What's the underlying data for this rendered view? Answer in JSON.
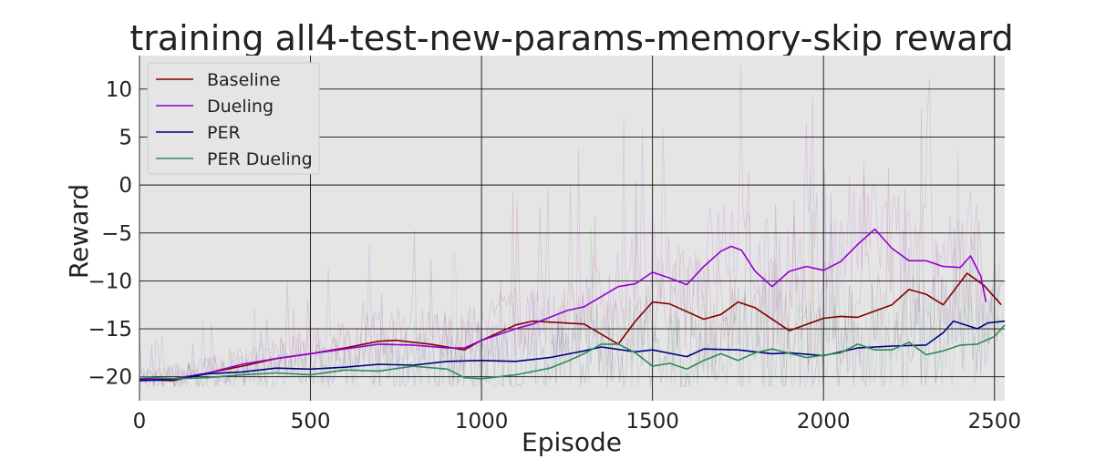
{
  "chart_data": {
    "type": "line",
    "title": "training all4-test-new-params-memory-skip reward",
    "xlabel": "Episode",
    "ylabel": "Reward",
    "xlim": [
      0,
      2530
    ],
    "ylim": [
      -22.5,
      13.5
    ],
    "xticks": [
      0,
      500,
      1000,
      1500,
      2000,
      2500
    ],
    "xtick_labels": [
      "0",
      "500",
      "1000",
      "1500",
      "2000",
      "2500"
    ],
    "yticks": [
      10,
      5,
      0,
      -5,
      -10,
      -15,
      -20
    ],
    "ytick_labels": [
      "10",
      "5",
      "0",
      "−5",
      "−10",
      "−15",
      "−20"
    ],
    "grid": true,
    "legend_position": "top-left",
    "series": [
      {
        "name": "Baseline",
        "color": "#800000",
        "smoothed": [
          [
            0,
            -20.3
          ],
          [
            100,
            -20.4
          ],
          [
            200,
            -19.6
          ],
          [
            300,
            -18.9
          ],
          [
            400,
            -18.1
          ],
          [
            500,
            -17.6
          ],
          [
            600,
            -17.0
          ],
          [
            700,
            -16.3
          ],
          [
            750,
            -16.2
          ],
          [
            850,
            -16.6
          ],
          [
            950,
            -17.2
          ],
          [
            1000,
            -16.2
          ],
          [
            1100,
            -14.6
          ],
          [
            1150,
            -14.2
          ],
          [
            1300,
            -14.5
          ],
          [
            1400,
            -16.6
          ],
          [
            1450,
            -14.2
          ],
          [
            1500,
            -12.2
          ],
          [
            1550,
            -12.4
          ],
          [
            1650,
            -14.0
          ],
          [
            1700,
            -13.5
          ],
          [
            1750,
            -12.2
          ],
          [
            1800,
            -12.8
          ],
          [
            1900,
            -15.2
          ],
          [
            2000,
            -13.9
          ],
          [
            2050,
            -13.7
          ],
          [
            2100,
            -13.8
          ],
          [
            2200,
            -12.5
          ],
          [
            2250,
            -10.9
          ],
          [
            2300,
            -11.4
          ],
          [
            2350,
            -12.5
          ],
          [
            2420,
            -9.2
          ],
          [
            2470,
            -10.5
          ],
          [
            2520,
            -12.5
          ]
        ]
      },
      {
        "name": "Dueling",
        "color": "#9400d3",
        "smoothed": [
          [
            0,
            -20.2
          ],
          [
            100,
            -20.2
          ],
          [
            200,
            -19.6
          ],
          [
            300,
            -18.7
          ],
          [
            400,
            -18.1
          ],
          [
            500,
            -17.6
          ],
          [
            600,
            -17.1
          ],
          [
            700,
            -16.6
          ],
          [
            800,
            -16.7
          ],
          [
            900,
            -17.0
          ],
          [
            950,
            -17.0
          ],
          [
            1000,
            -16.2
          ],
          [
            1100,
            -15.0
          ],
          [
            1150,
            -14.5
          ],
          [
            1250,
            -13.1
          ],
          [
            1300,
            -12.7
          ],
          [
            1400,
            -10.6
          ],
          [
            1450,
            -10.3
          ],
          [
            1500,
            -9.1
          ],
          [
            1550,
            -9.7
          ],
          [
            1600,
            -10.4
          ],
          [
            1650,
            -8.5
          ],
          [
            1700,
            -6.9
          ],
          [
            1730,
            -6.4
          ],
          [
            1760,
            -6.8
          ],
          [
            1800,
            -9.0
          ],
          [
            1850,
            -10.6
          ],
          [
            1900,
            -9.0
          ],
          [
            1950,
            -8.5
          ],
          [
            2000,
            -8.9
          ],
          [
            2050,
            -8.0
          ],
          [
            2100,
            -6.2
          ],
          [
            2150,
            -4.6
          ],
          [
            2200,
            -6.6
          ],
          [
            2250,
            -7.9
          ],
          [
            2300,
            -7.9
          ],
          [
            2350,
            -8.5
          ],
          [
            2400,
            -8.6
          ],
          [
            2430,
            -7.4
          ],
          [
            2460,
            -9.5
          ],
          [
            2475,
            -12.2
          ]
        ]
      },
      {
        "name": "PER",
        "color": "#000080",
        "smoothed": [
          [
            0,
            -20.4
          ],
          [
            100,
            -20.3
          ],
          [
            200,
            -19.7
          ],
          [
            300,
            -19.5
          ],
          [
            400,
            -19.1
          ],
          [
            500,
            -19.2
          ],
          [
            600,
            -19.0
          ],
          [
            700,
            -18.7
          ],
          [
            800,
            -18.8
          ],
          [
            900,
            -18.4
          ],
          [
            1000,
            -18.3
          ],
          [
            1100,
            -18.4
          ],
          [
            1200,
            -18.0
          ],
          [
            1300,
            -17.3
          ],
          [
            1350,
            -16.9
          ],
          [
            1450,
            -17.4
          ],
          [
            1500,
            -17.2
          ],
          [
            1600,
            -17.9
          ],
          [
            1650,
            -17.1
          ],
          [
            1750,
            -17.2
          ],
          [
            1850,
            -17.6
          ],
          [
            1900,
            -17.5
          ],
          [
            2000,
            -17.8
          ],
          [
            2100,
            -17.0
          ],
          [
            2200,
            -16.8
          ],
          [
            2300,
            -16.7
          ],
          [
            2350,
            -15.4
          ],
          [
            2380,
            -14.2
          ],
          [
            2450,
            -15.0
          ],
          [
            2480,
            -14.4
          ],
          [
            2530,
            -14.2
          ]
        ]
      },
      {
        "name": "PER Dueling",
        "color": "#2e8b57",
        "smoothed": [
          [
            0,
            -20.0
          ],
          [
            100,
            -20.2
          ],
          [
            200,
            -20.1
          ],
          [
            300,
            -19.8
          ],
          [
            400,
            -19.6
          ],
          [
            500,
            -19.8
          ],
          [
            600,
            -19.3
          ],
          [
            700,
            -19.4
          ],
          [
            800,
            -18.9
          ],
          [
            900,
            -19.2
          ],
          [
            950,
            -20.1
          ],
          [
            1000,
            -20.2
          ],
          [
            1100,
            -19.8
          ],
          [
            1200,
            -19.1
          ],
          [
            1250,
            -18.4
          ],
          [
            1300,
            -17.6
          ],
          [
            1350,
            -16.6
          ],
          [
            1400,
            -16.6
          ],
          [
            1450,
            -17.5
          ],
          [
            1500,
            -18.9
          ],
          [
            1550,
            -18.6
          ],
          [
            1600,
            -19.2
          ],
          [
            1650,
            -18.3
          ],
          [
            1700,
            -17.6
          ],
          [
            1750,
            -18.3
          ],
          [
            1800,
            -17.5
          ],
          [
            1850,
            -17.1
          ],
          [
            1950,
            -18.0
          ],
          [
            2050,
            -17.5
          ],
          [
            2100,
            -16.6
          ],
          [
            2150,
            -17.2
          ],
          [
            2200,
            -17.2
          ],
          [
            2250,
            -16.4
          ],
          [
            2300,
            -17.7
          ],
          [
            2350,
            -17.3
          ],
          [
            2400,
            -16.7
          ],
          [
            2450,
            -16.6
          ],
          [
            2500,
            -15.8
          ],
          [
            2530,
            -14.6
          ]
        ]
      }
    ]
  }
}
